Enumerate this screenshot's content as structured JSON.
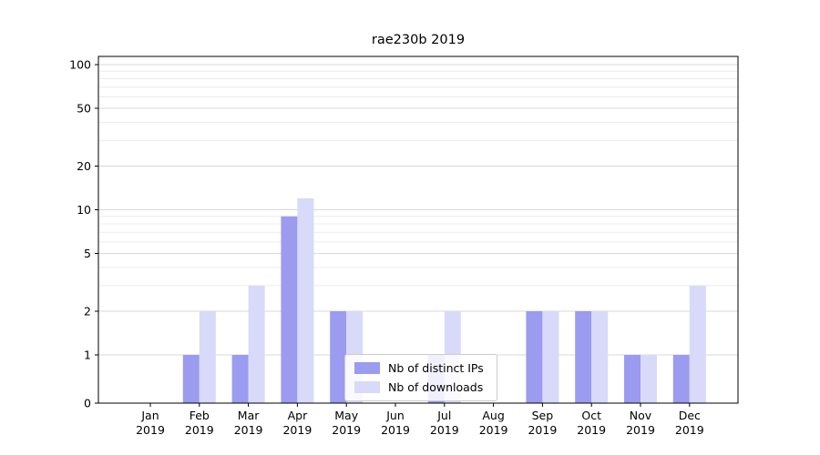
{
  "chart_data": {
    "type": "bar",
    "title": "rae230b 2019",
    "categories": [
      "Jan 2019",
      "Feb 2019",
      "Mar 2019",
      "Apr 2019",
      "May 2019",
      "Jun 2019",
      "Jul 2019",
      "Aug 2019",
      "Sep 2019",
      "Oct 2019",
      "Nov 2019",
      "Dec 2019"
    ],
    "series": [
      {
        "name": "Nb of distinct IPs",
        "color": "#9b9bef",
        "values": [
          0,
          1,
          1,
          9,
          2,
          0,
          1,
          0,
          2,
          2,
          1,
          1
        ]
      },
      {
        "name": "Nb of downloads",
        "color": "#d9d9f9",
        "values": [
          0,
          2,
          3,
          12,
          2,
          0,
          2,
          0,
          2,
          2,
          1,
          3
        ]
      }
    ],
    "xlabel": "",
    "ylabel": "",
    "yscale": "symlog",
    "ylim": [
      0,
      100
    ],
    "yticks": [
      0,
      1,
      2,
      5,
      10,
      20,
      50,
      100
    ],
    "minor_yticks": [
      3,
      4,
      6,
      7,
      8,
      9,
      30,
      40,
      60,
      70,
      80,
      90
    ],
    "grid": true,
    "legend_position": "lower center"
  }
}
